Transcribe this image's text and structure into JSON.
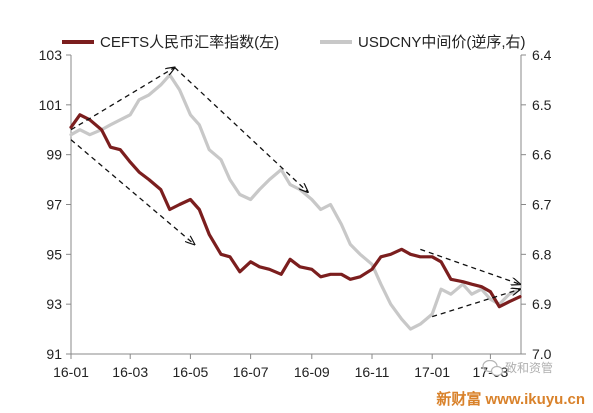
{
  "chart_data": {
    "type": "line",
    "legend_position": "top",
    "grid": false,
    "x_ticks": [
      "16-01",
      "16-03",
      "16-05",
      "16-07",
      "16-09",
      "16-11",
      "17-01",
      "17-03"
    ],
    "y_left": {
      "lim": [
        91,
        103
      ],
      "ticks": [
        "91",
        "93",
        "95",
        "97",
        "99",
        "101",
        "103"
      ]
    },
    "y_right": {
      "lim": [
        6.4,
        7.0
      ],
      "inverted": true,
      "ticks": [
        "6.4",
        "6.5",
        "6.6",
        "6.7",
        "6.8",
        "6.9",
        "7.0"
      ]
    },
    "series": [
      {
        "name": "CEFTS人民币汇率指数(左)",
        "axis": "left",
        "color": "#7b1e1e",
        "x": [
          "2016-01-01",
          "2016-01-10",
          "2016-01-20",
          "2016-02-01",
          "2016-02-10",
          "2016-02-20",
          "2016-03-01",
          "2016-03-10",
          "2016-03-20",
          "2016-04-01",
          "2016-04-10",
          "2016-04-20",
          "2016-05-01",
          "2016-05-10",
          "2016-05-20",
          "2016-06-01",
          "2016-06-10",
          "2016-06-20",
          "2016-07-01",
          "2016-07-10",
          "2016-07-20",
          "2016-08-01",
          "2016-08-10",
          "2016-08-20",
          "2016-09-01",
          "2016-09-10",
          "2016-09-20",
          "2016-10-01",
          "2016-10-10",
          "2016-10-20",
          "2016-11-01",
          "2016-11-10",
          "2016-11-20",
          "2016-12-01",
          "2016-12-10",
          "2016-12-20",
          "2017-01-01",
          "2017-01-10",
          "2017-01-20",
          "2017-02-01",
          "2017-02-10",
          "2017-02-20",
          "2017-03-01",
          "2017-03-10",
          "2017-03-20",
          "2017-03-31"
        ],
        "values": [
          100.1,
          100.6,
          100.4,
          100.0,
          99.3,
          99.2,
          98.7,
          98.3,
          98.0,
          97.6,
          96.8,
          97.0,
          97.2,
          96.8,
          95.8,
          95.0,
          94.9,
          94.3,
          94.7,
          94.5,
          94.4,
          94.2,
          94.8,
          94.5,
          94.4,
          94.1,
          94.2,
          94.2,
          94.0,
          94.1,
          94.4,
          94.9,
          95.0,
          95.2,
          95.0,
          94.9,
          94.9,
          94.7,
          94.0,
          93.9,
          93.8,
          93.7,
          93.5,
          92.9,
          93.1,
          93.3
        ]
      },
      {
        "name": "USDCNY中间价(逆序,右)",
        "axis": "right",
        "color": "#c8c8c8",
        "x": [
          "2016-01-01",
          "2016-01-10",
          "2016-01-20",
          "2016-02-01",
          "2016-02-10",
          "2016-02-20",
          "2016-03-01",
          "2016-03-10",
          "2016-03-20",
          "2016-04-01",
          "2016-04-10",
          "2016-04-20",
          "2016-05-01",
          "2016-05-10",
          "2016-05-20",
          "2016-06-01",
          "2016-06-10",
          "2016-06-20",
          "2016-07-01",
          "2016-07-10",
          "2016-07-20",
          "2016-08-01",
          "2016-08-10",
          "2016-08-20",
          "2016-09-01",
          "2016-09-10",
          "2016-09-20",
          "2016-10-01",
          "2016-10-10",
          "2016-10-20",
          "2016-11-01",
          "2016-11-10",
          "2016-11-20",
          "2016-12-01",
          "2016-12-10",
          "2016-12-20",
          "2017-01-01",
          "2017-01-10",
          "2017-01-20",
          "2017-02-01",
          "2017-02-10",
          "2017-02-20",
          "2017-03-01",
          "2017-03-10",
          "2017-03-20",
          "2017-03-31"
        ],
        "values": [
          6.56,
          6.55,
          6.56,
          6.55,
          6.54,
          6.53,
          6.52,
          6.49,
          6.48,
          6.46,
          6.44,
          6.47,
          6.52,
          6.54,
          6.59,
          6.61,
          6.65,
          6.68,
          6.69,
          6.67,
          6.65,
          6.63,
          6.66,
          6.67,
          6.69,
          6.71,
          6.7,
          6.74,
          6.78,
          6.8,
          6.82,
          6.86,
          6.9,
          6.93,
          6.95,
          6.94,
          6.92,
          6.87,
          6.88,
          6.86,
          6.88,
          6.87,
          6.89,
          6.9,
          6.88,
          6.87
        ]
      }
    ],
    "annotations": [
      {
        "kind": "dashed-arrow",
        "x": [
          "2016-01-01",
          "2016-04-15"
        ],
        "y_left": [
          100.0,
          102.5
        ],
        "arrowheads": "end"
      },
      {
        "kind": "dashed-arrow",
        "x": [
          "2016-01-01",
          "2016-05-05"
        ],
        "y_left": [
          99.6,
          95.4
        ],
        "arrowheads": "end"
      },
      {
        "kind": "dashed-arrow",
        "x": [
          "2016-04-15",
          "2016-08-28"
        ],
        "y_left": [
          102.5,
          97.5
        ],
        "arrowheads": "end"
      },
      {
        "kind": "dashed-arrow",
        "x": [
          "2016-12-20",
          "2017-03-31"
        ],
        "y_left": [
          95.2,
          93.8
        ],
        "arrowheads": "end"
      },
      {
        "kind": "dashed-arrow",
        "x": [
          "2017-01-01",
          "2017-03-31"
        ],
        "y_left": [
          92.5,
          93.6
        ],
        "arrowheads": "end"
      }
    ]
  },
  "watermarks": {
    "wechat": "致和资管",
    "site": "新财富 www.ikuyu.cn"
  }
}
